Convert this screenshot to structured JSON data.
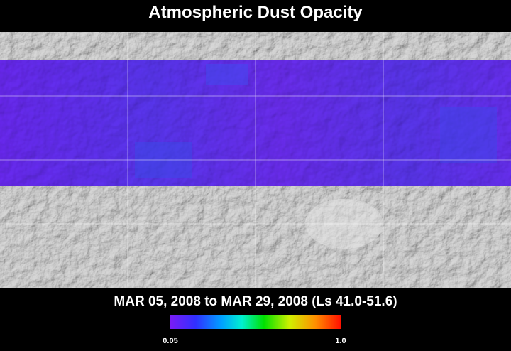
{
  "header": {
    "title": "Atmospheric Dust Opacity"
  },
  "map": {
    "date_range": "MAR 05, 2008 to MAR 29, 2008 (Ls 41.0-51.6)"
  },
  "legend": {
    "min_label": "0.05",
    "max_label": "1.0"
  }
}
